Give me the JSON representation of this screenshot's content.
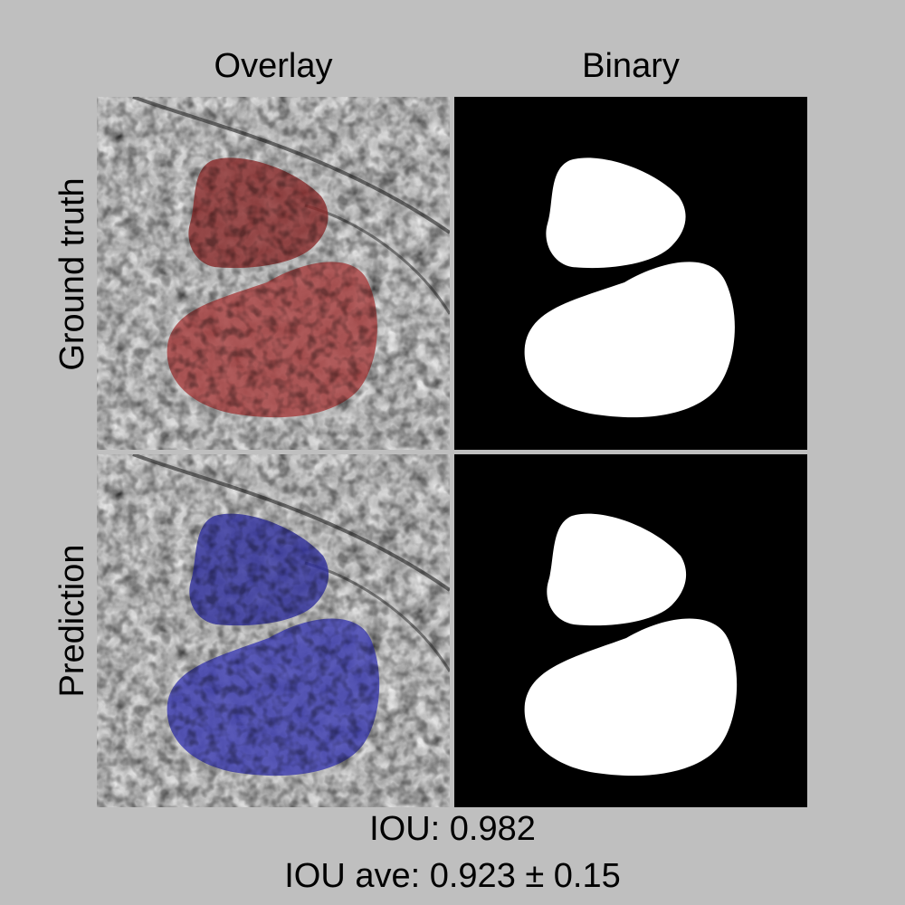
{
  "columns": {
    "overlay": "Overlay",
    "binary": "Binary"
  },
  "rows": {
    "ground_truth": "Ground truth",
    "prediction": "Prediction"
  },
  "metrics": {
    "iou": "IOU: 0.982",
    "iou_ave": "IOU ave: 0.923 ± 0.15"
  },
  "colors": {
    "background": "#bfbfbf",
    "ground_truth_overlay": "#8b2b2b",
    "prediction_overlay": "#2e2e9e",
    "mask_foreground": "#ffffff",
    "mask_background": "#000000"
  }
}
